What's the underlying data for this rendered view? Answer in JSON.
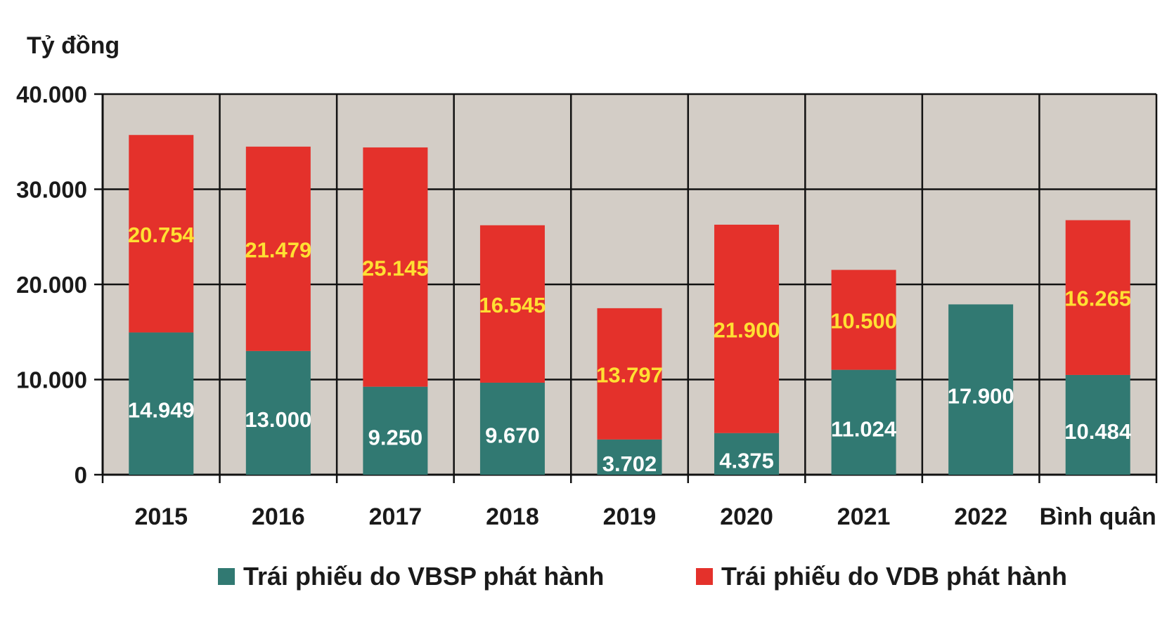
{
  "chart_data": {
    "type": "bar",
    "stacked": true,
    "ylabel": "Tỷ đồng",
    "ylim": [
      0,
      40000
    ],
    "yticks": [
      0,
      10000,
      20000,
      30000,
      40000
    ],
    "ytick_labels": [
      "0",
      "10.000",
      "20.000",
      "30.000",
      "40.000"
    ],
    "grid": true,
    "legend_position": "bottom",
    "categories": [
      "2015",
      "2016",
      "2017",
      "2018",
      "2019",
      "2020",
      "2021",
      "2022",
      "Bình quân"
    ],
    "series": [
      {
        "name": "Trái phiếu do VBSP phát hành",
        "color": "#317972",
        "label_color": "#ffffff",
        "values": [
          14949,
          13000,
          9250,
          9670,
          3702,
          4375,
          11024,
          17900,
          10484
        ],
        "labels": [
          "14.949",
          "13.000",
          "9.250",
          "9.670",
          "3.702",
          "4.375",
          "11.024",
          "17.900",
          "10.484"
        ]
      },
      {
        "name": "Trái phiếu do VDB phát hành",
        "color": "#e4312b",
        "label_color": "#ffe033",
        "values": [
          20754,
          21479,
          25145,
          16545,
          13797,
          21900,
          10500,
          0,
          16265
        ],
        "labels": [
          "20.754",
          "21.479",
          "25.145",
          "16.545",
          "13.797",
          "21.900",
          "10.500",
          "",
          "16.265"
        ]
      }
    ]
  },
  "colors": {
    "plot_background": "#d3cdc6",
    "grid": "#111111",
    "text": "#1a1a1a"
  }
}
